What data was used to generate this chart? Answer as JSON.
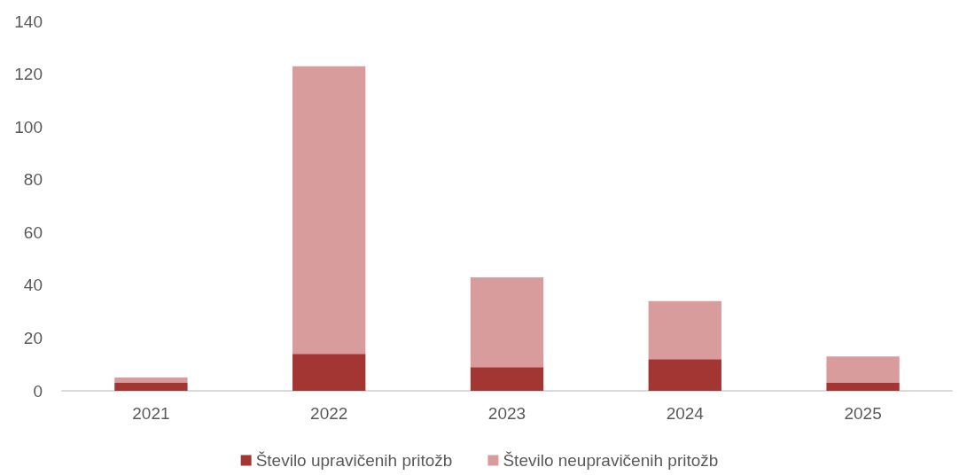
{
  "chart_data": {
    "type": "bar",
    "stacked": true,
    "categories": [
      "2021",
      "2022",
      "2023",
      "2024",
      "2025"
    ],
    "series": [
      {
        "name": "Število upravičenih pritožb",
        "color": "#a33533",
        "values": [
          3,
          14,
          9,
          12,
          3
        ]
      },
      {
        "name": "Število neupravičenih pritožb",
        "color": "#d89c9c",
        "values": [
          2,
          109,
          34,
          22,
          10
        ]
      }
    ],
    "ylim": [
      0,
      140
    ],
    "yticks": [
      0,
      20,
      40,
      60,
      80,
      100,
      120,
      140
    ],
    "grid": false,
    "legend": "bottom"
  }
}
